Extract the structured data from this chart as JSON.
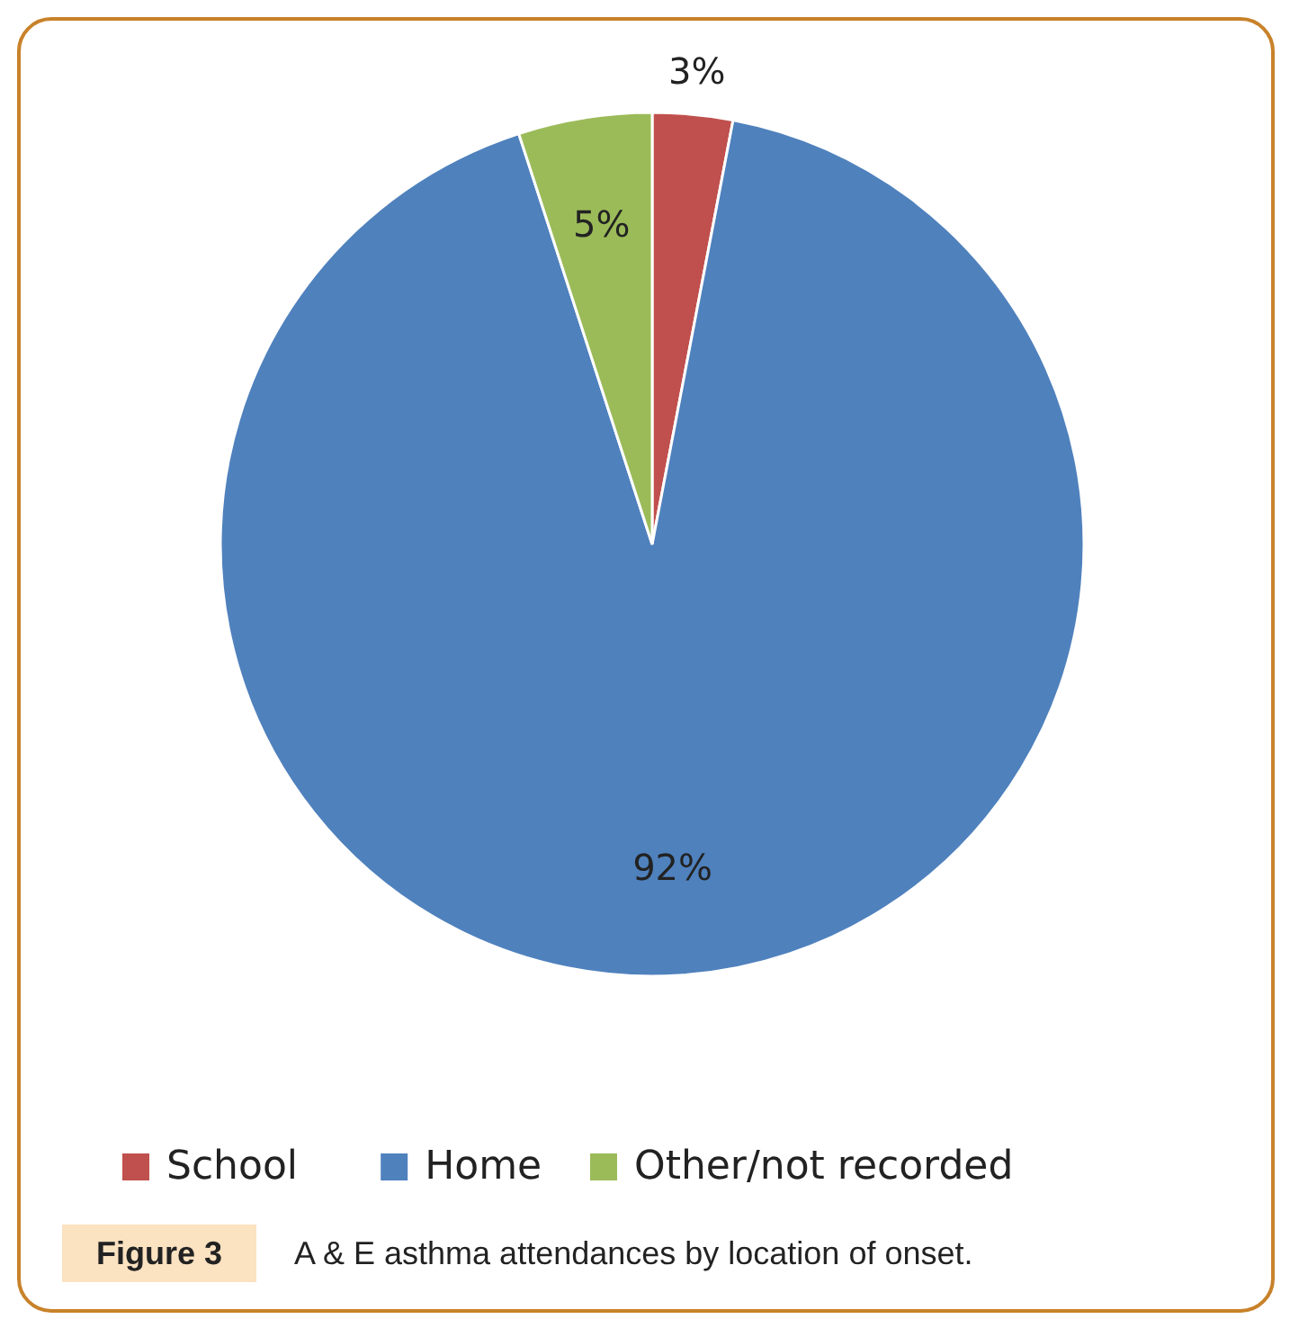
{
  "chart_data": {
    "type": "pie",
    "title": "Figure 3",
    "subtitle": "A & E asthma attendances by location of onset.",
    "categories": [
      "School",
      "Home",
      "Other/not recorded"
    ],
    "values": [
      3,
      92,
      5
    ],
    "colors": [
      "#c0504d",
      "#4f81bd",
      "#9bbb59"
    ],
    "value_labels": [
      "3%",
      "92%",
      "5%"
    ],
    "legend": "bottom"
  }
}
